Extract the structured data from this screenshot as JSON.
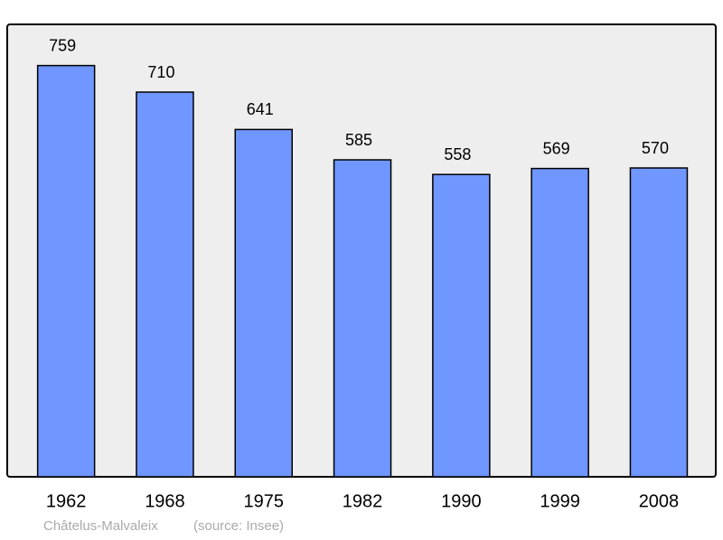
{
  "chart_data": {
    "type": "bar",
    "categories": [
      "1962",
      "1968",
      "1975",
      "1982",
      "1990",
      "1999",
      "2008"
    ],
    "values": [
      759,
      710,
      641,
      585,
      558,
      569,
      570
    ],
    "color": "#7096ff",
    "ylim": [
      0,
      835
    ],
    "caption": "Châtelus-Malvaleix",
    "source": "(source: Insee)"
  }
}
